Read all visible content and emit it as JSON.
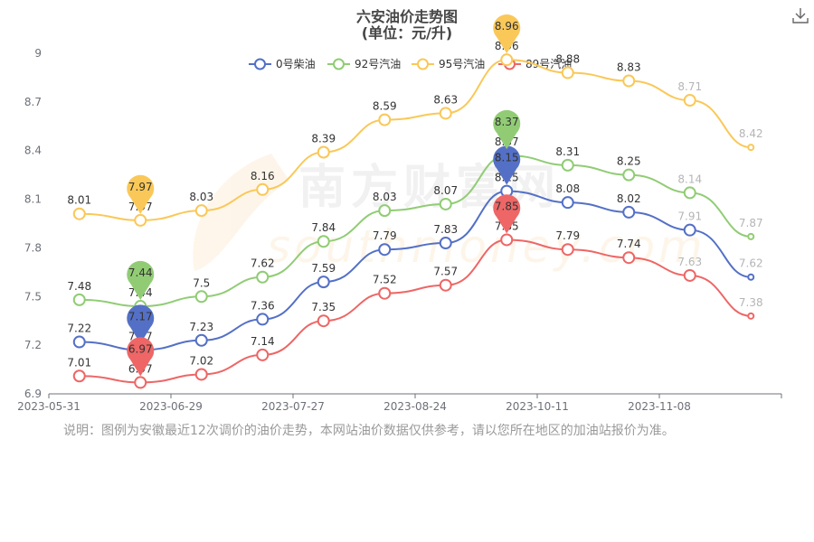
{
  "chart_data": {
    "type": "line",
    "title": "六安油价走势图",
    "subtitle": "(单位：元/升)",
    "ylim": [
      6.9,
      9.0
    ],
    "yticks": [
      6.9,
      7.2,
      7.5,
      7.8,
      8.1,
      8.4,
      8.7,
      9
    ],
    "ytick_labels": [
      "6.9",
      "7.2",
      "7.5",
      "7.8",
      "8.1",
      "8.4",
      "8.7",
      "9"
    ],
    "xlabels_visible": [
      "2023-05-31",
      "2023-06-29",
      "2023-07-27",
      "2023-08-24",
      "2023-10-11",
      "2023-11-08"
    ],
    "xlabel_positions": [
      0,
      2,
      4,
      6,
      8,
      10
    ],
    "point_count": 12,
    "legend_position": "top-center",
    "grid": false,
    "series": [
      {
        "name": "0号柴油",
        "color": "#5470c6",
        "values": [
          7.22,
          7.17,
          7.23,
          7.36,
          7.59,
          7.79,
          7.83,
          8.15,
          8.08,
          8.02,
          7.91,
          7.62
        ],
        "markers": [
          "7.17",
          "8.15"
        ]
      },
      {
        "name": "92号汽油",
        "color": "#91cc75",
        "values": [
          7.48,
          7.44,
          7.5,
          7.62,
          7.84,
          8.03,
          8.07,
          8.37,
          8.31,
          8.25,
          8.14,
          7.87
        ],
        "markers": [
          "7.44",
          "8.37"
        ]
      },
      {
        "name": "95号汽油",
        "color": "#fac858",
        "values": [
          8.01,
          7.97,
          8.03,
          8.16,
          8.39,
          8.59,
          8.63,
          8.96,
          8.88,
          8.83,
          8.71,
          8.42
        ],
        "markers": [
          "7.97",
          "8.96"
        ]
      },
      {
        "name": "89号汽油",
        "color": "#ee6666",
        "values": [
          7.01,
          6.97,
          7.02,
          7.14,
          7.35,
          7.52,
          7.57,
          7.85,
          7.79,
          7.74,
          7.63,
          7.38
        ],
        "markers": [
          "6.97",
          "7.85"
        ]
      }
    ]
  },
  "watermark": "南方财富网 southmoney.com",
  "note": "说明：图例为安徽最近12次调价的油价走势，本网站油价数据仅供参考，请以您所在地区的加油站报价为准。",
  "download_icon": "download-icon"
}
